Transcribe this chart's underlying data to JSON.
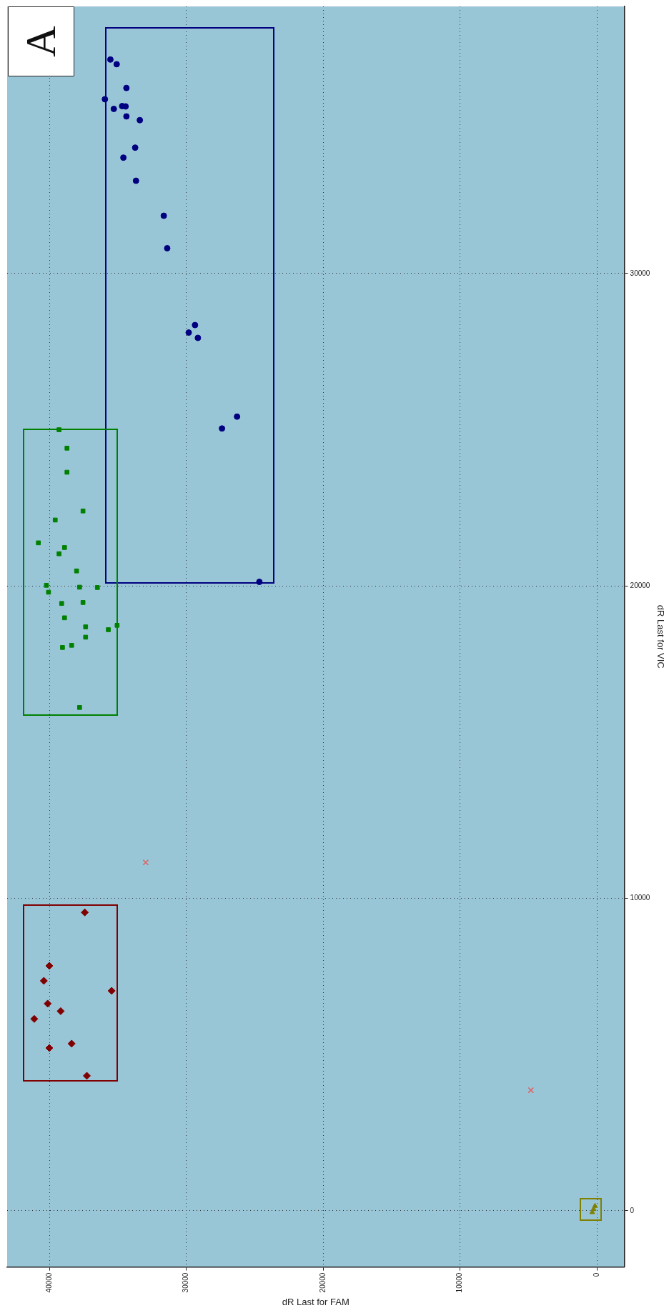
{
  "chart_data": {
    "type": "scatter",
    "xlabel": "dR Last for FAM",
    "ylabel": "dR Last for VIC",
    "annotations": [
      "A"
    ],
    "xlim": [
      43080,
      -2000
    ],
    "xticks": [
      40000,
      30000,
      20000,
      10000,
      0
    ],
    "ylim": [
      -1800,
      38550
    ],
    "yticks": [
      0,
      10000,
      20000,
      30000
    ],
    "grid": true,
    "series": [
      {
        "marker": "circle",
        "color": "#000080",
        "x": [
          35540,
          35080,
          34370,
          35940,
          35290,
          34680,
          34430,
          34370,
          33390,
          33730,
          34590,
          33670,
          31640,
          31390,
          29360,
          29820,
          29150,
          26290,
          27390,
          24660
        ],
        "values": [
          36850,
          36700,
          35940,
          35580,
          35270,
          35360,
          35350,
          35030,
          34910,
          34030,
          33710,
          32970,
          31850,
          30810,
          28350,
          28110,
          27940,
          25420,
          25040,
          20130
        ]
      },
      {
        "marker": "square",
        "color": "#008000",
        "x": [
          39290,
          38710,
          38710,
          37540,
          39570,
          40800,
          38890,
          39290,
          38010,
          40210,
          37790,
          36490,
          40060,
          39100,
          37540,
          38890,
          37350,
          35690,
          35050,
          37350,
          39040,
          38370,
          37790
        ],
        "values": [
          25000,
          24410,
          23640,
          22400,
          22110,
          21380,
          21230,
          21030,
          20480,
          20020,
          19960,
          19950,
          19800,
          19440,
          19470,
          18980,
          18690,
          18600,
          18740,
          18360,
          18030,
          18100,
          16110
        ]
      },
      {
        "marker": "diamond",
        "color": "#800000",
        "x": [
          37410,
          40000,
          40400,
          35450,
          40120,
          39170,
          41100,
          40000,
          38370,
          37260
        ],
        "values": [
          9550,
          7840,
          7360,
          7040,
          6630,
          6390,
          6140,
          5210,
          5350,
          4320
        ]
      },
      {
        "marker": "triangle",
        "color": "#808000",
        "x": [
          250,
          150,
          350
        ],
        "values": [
          50,
          150,
          -50
        ]
      },
      {
        "marker": "cross",
        "color": "#e06060",
        "x": [
          32960,
          4830
        ],
        "values": [
          11150,
          3860
        ]
      }
    ]
  }
}
